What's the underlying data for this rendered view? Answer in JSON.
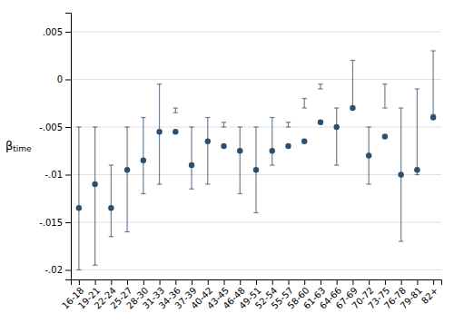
{
  "chart_data": {
    "type": "dot",
    "y_label": "βtime",
    "categories": [
      "16-18",
      "19-21",
      "22-24",
      "25-27",
      "28-30",
      "31-33",
      "34-36",
      "37-39",
      "40-42",
      "43-45",
      "46-48",
      "49-51",
      "52-54",
      "55-57",
      "58-60",
      "61-63",
      "64-66",
      "67-69",
      "70-72",
      "73-75",
      "76-78",
      "79-81",
      "82+"
    ],
    "values": [
      -0.0135,
      -0.011,
      -0.0135,
      -0.0095,
      -0.0085,
      -0.0055,
      -0.0055,
      -0.009,
      -0.0065,
      -0.007,
      -0.0075,
      -0.0095,
      -0.0075,
      -0.007,
      -0.0065,
      -0.0045,
      -0.005,
      -0.003,
      -0.008,
      -0.006,
      -0.01,
      -0.0095,
      -0.004
    ],
    "ci_lower": [
      -0.02,
      -0.0195,
      -0.0165,
      -0.016,
      -0.012,
      -0.011,
      -0.0035,
      -0.0115,
      -0.011,
      -0.0045,
      -0.012,
      -0.014,
      -0.009,
      -0.0045,
      -0.003,
      -0.001,
      -0.009,
      -0.003,
      -0.011,
      -0.003,
      -0.017,
      -0.01,
      -0.0037
    ],
    "ci_upper": [
      -0.005,
      -0.005,
      -0.009,
      -0.005,
      -0.004,
      -0.0005,
      -0.003,
      -0.005,
      -0.004,
      -0.005,
      -0.005,
      -0.005,
      -0.004,
      -0.005,
      -0.002,
      -0.0005,
      -0.003,
      0.002,
      -0.005,
      -0.0005,
      -0.003,
      -0.001,
      0.003
    ],
    "color": "#2b4f6e",
    "ylim": [
      -0.021,
      0.007
    ],
    "yticks": [
      {
        "value": 0.005,
        "label": ".005"
      },
      0,
      {
        "value": -0.005,
        "label": "-.005"
      },
      {
        "value": -0.01,
        "label": "-.01"
      },
      {
        "value": -0.015,
        "label": "-.015"
      },
      {
        "value": -0.02,
        "label": "-.02"
      }
    ],
    "grid": true
  }
}
